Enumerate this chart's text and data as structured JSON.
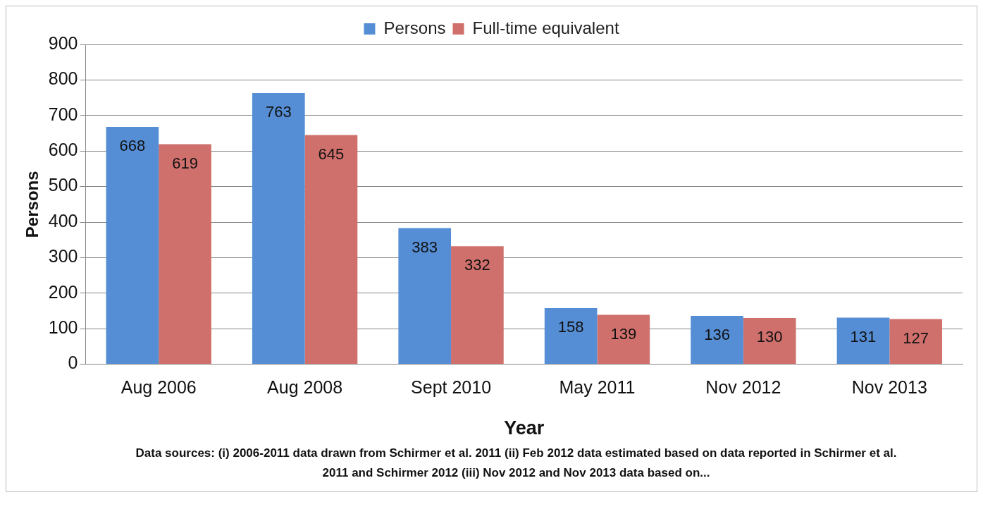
{
  "chart_data": {
    "type": "bar",
    "xlabel": "Year",
    "ylabel": "Persons",
    "categories": [
      "Aug 2006",
      "Aug 2008",
      "Sept 2010",
      "May 2011",
      "Nov 2012",
      "Nov 2013"
    ],
    "series": [
      {
        "name": "Persons",
        "color": "#558ed5",
        "values": [
          668,
          763,
          383,
          158,
          136,
          131
        ]
      },
      {
        "name": "Full-time equivalent",
        "color": "#d0706c",
        "values": [
          619,
          645,
          332,
          139,
          130,
          127
        ]
      }
    ],
    "ylim": [
      0,
      900
    ],
    "yticks": [
      0,
      100,
      200,
      300,
      400,
      500,
      600,
      700,
      800,
      900
    ],
    "grid": "y",
    "legend": "top",
    "data_labels": true,
    "annotations": [
      "Data sources: (i) 2006-2011 data drawn from Schirmer et al. 2011 (ii) Feb 2012 data  estimated based on data reported in Schirmer et al. 2011 and Schirmer 2012 (iii) Nov 2012 and Nov 2013 data based on..."
    ]
  }
}
